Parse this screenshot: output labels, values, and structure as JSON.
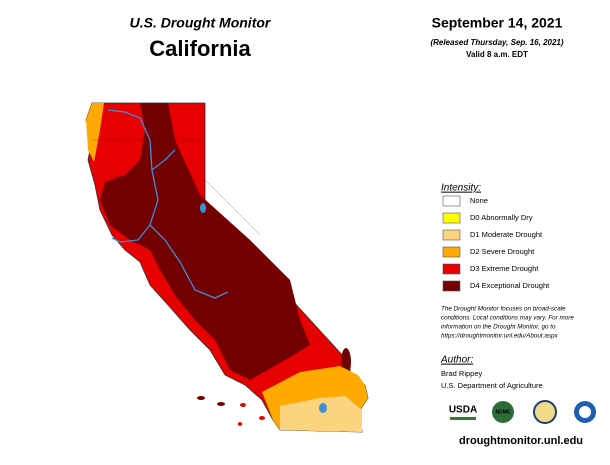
{
  "header": {
    "product": "U.S. Drought Monitor",
    "state": "California",
    "date": "September 14, 2021",
    "released": "(Released Thursday, Sep. 16, 2021)",
    "valid": "Valid 8 a.m. EDT"
  },
  "legend": {
    "title": "Intensity:",
    "items": [
      {
        "label": "None",
        "color": "#ffffff"
      },
      {
        "label": "D0 Abnormally Dry",
        "color": "#ffff00"
      },
      {
        "label": "D1 Moderate Drought",
        "color": "#fcd37f"
      },
      {
        "label": "D2 Severe Drought",
        "color": "#ffaa00"
      },
      {
        "label": "D3 Extreme Drought",
        "color": "#e60000"
      },
      {
        "label": "D4 Exceptional Drought",
        "color": "#730000"
      }
    ]
  },
  "note": [
    "The Drought Monitor focuses on broad-scale",
    "conditions. Local conditions may vary. For more",
    "information on the Drought Monitor, go to",
    "https://droughtmonitor.unl.edu/About.aspx"
  ],
  "author": {
    "title": "Author:",
    "name": "Brad Rippey",
    "org": "U.S. Department of Agriculture"
  },
  "logos": [
    "USDA",
    "NDMC"
  ],
  "url": "droughtmonitor.unl.edu"
}
